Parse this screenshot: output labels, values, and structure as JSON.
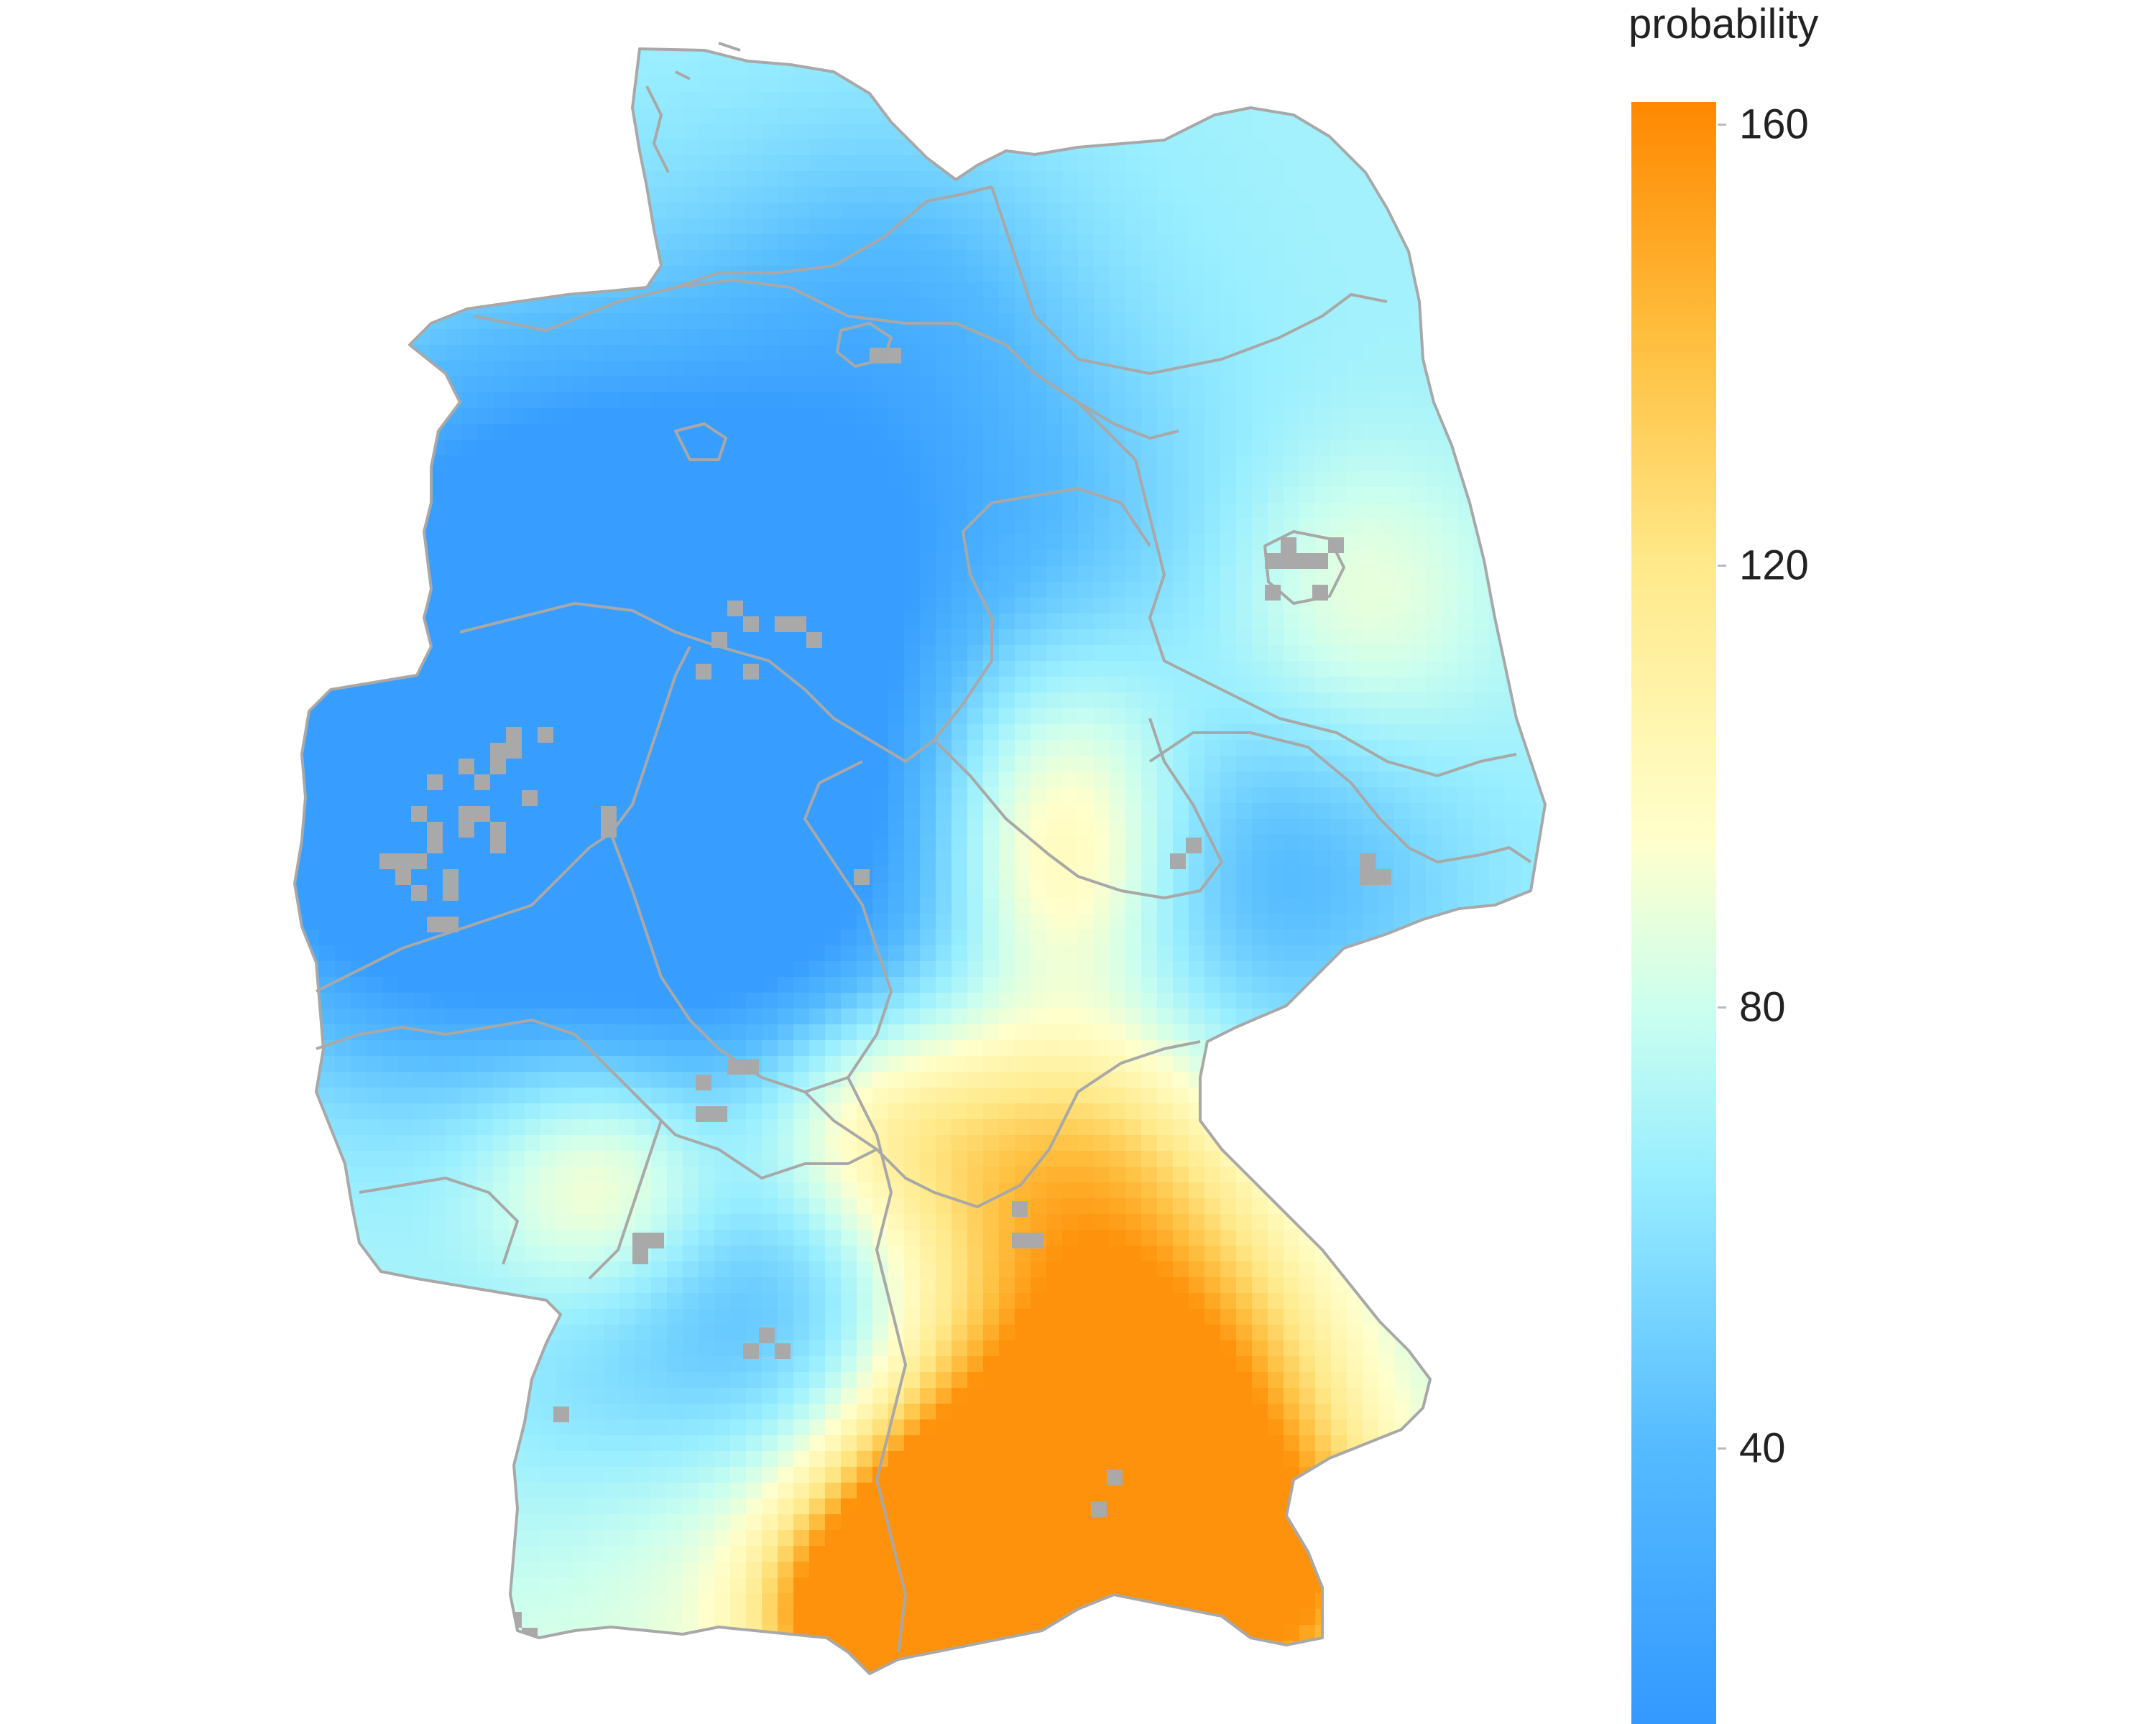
{
  "legend": {
    "title": "probability",
    "min": 15,
    "max": 162,
    "ticks": [
      {
        "value": 160,
        "label": "160"
      },
      {
        "value": 120,
        "label": "120"
      },
      {
        "value": 80,
        "label": "80"
      },
      {
        "value": 40,
        "label": "40"
      }
    ],
    "color_stops": [
      {
        "value": 15,
        "color": "#3399ff"
      },
      {
        "value": 40,
        "color": "#55bbff"
      },
      {
        "value": 65,
        "color": "#99eeff"
      },
      {
        "value": 80,
        "color": "#ccffee"
      },
      {
        "value": 95,
        "color": "#ffffcc"
      },
      {
        "value": 120,
        "color": "#ffe98a"
      },
      {
        "value": 140,
        "color": "#ffc040"
      },
      {
        "value": 162,
        "color": "#ff8800"
      }
    ]
  },
  "colors": {
    "missing": "#a9a9a9",
    "borders": "#a8a8a8",
    "background": "#ffffff"
  }
}
